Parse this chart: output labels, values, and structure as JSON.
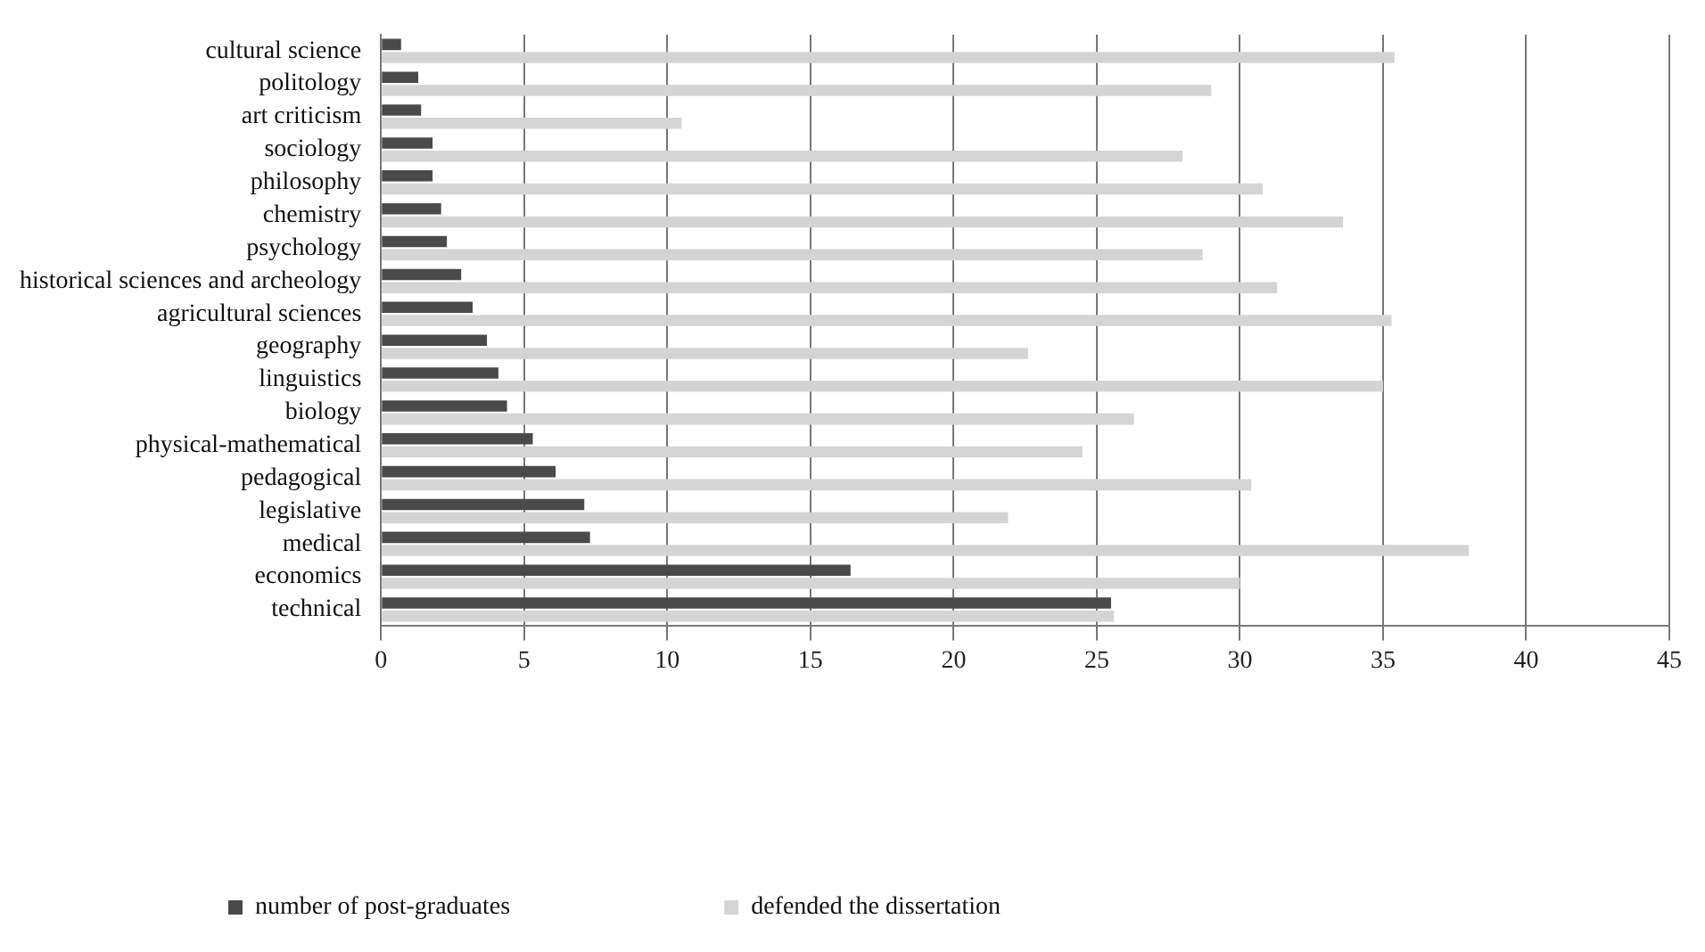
{
  "chart_data": {
    "type": "bar",
    "orientation": "horizontal",
    "categories": [
      "cultural science",
      "politology",
      "art criticism",
      "sociology",
      "philosophy",
      "chemistry",
      "psychology",
      "historical sciences and archeology",
      "agricultural sciences",
      "geography",
      "linguistics",
      "biology",
      "physical-mathematical",
      "pedagogical",
      "legislative",
      "medical",
      "economics",
      "technical"
    ],
    "series": [
      {
        "name": "number of post-graduates",
        "color": "#4a4a4a",
        "values": [
          0.7,
          1.3,
          1.4,
          1.8,
          1.8,
          2.1,
          2.3,
          2.8,
          3.2,
          3.7,
          4.1,
          4.4,
          5.3,
          6.1,
          7.1,
          7.3,
          16.4,
          25.5
        ]
      },
      {
        "name": "defended the dissertation",
        "color": "#d4d4d4",
        "values": [
          35.4,
          29.0,
          10.5,
          28.0,
          30.8,
          33.6,
          28.7,
          31.3,
          35.3,
          22.6,
          35.0,
          26.3,
          24.5,
          30.4,
          21.9,
          38.0,
          30.0,
          25.6
        ]
      }
    ],
    "xlim": [
      0,
      45
    ],
    "xticks": [
      0,
      5,
      10,
      15,
      20,
      25,
      30,
      35,
      40,
      45
    ],
    "grid": "x",
    "legend": "bottom left"
  }
}
